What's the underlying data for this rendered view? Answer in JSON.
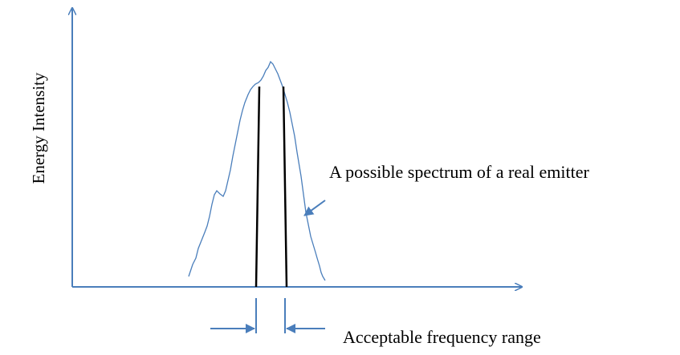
{
  "axis_label": "Energy Intensity",
  "spectrum_label": "A possible spectrum of a real emitter",
  "range_label": "Acceptable frequency range"
}
